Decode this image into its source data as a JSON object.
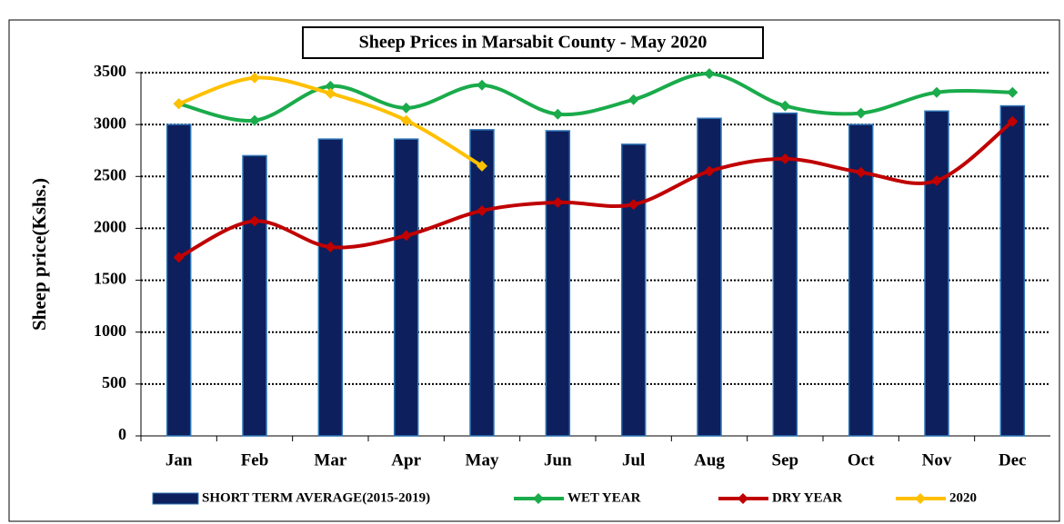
{
  "chart_data": {
    "type": "bar_line",
    "title": "Sheep Prices in Marsabit County - May 2020",
    "y_axis_label": "Sheep  price(Kshs.)",
    "categories": [
      "Jan",
      "Feb",
      "Mar",
      "Apr",
      "May",
      "Jun",
      "Jul",
      "Aug",
      "Sep",
      "Oct",
      "Nov",
      "Dec"
    ],
    "series": [
      {
        "name": "SHORT TERM AVERAGE(2015-2019)",
        "type": "bar",
        "color": "#0d1f5c",
        "values": [
          3000,
          2700,
          2860,
          2860,
          2950,
          2940,
          2810,
          3060,
          3110,
          3000,
          3130,
          3180
        ]
      },
      {
        "name": "WET YEAR",
        "type": "line",
        "color": "#1aab4b",
        "values": [
          3200,
          3040,
          3370,
          3160,
          3380,
          3100,
          3240,
          3490,
          3180,
          3110,
          3310,
          3310
        ]
      },
      {
        "name": "DRY YEAR",
        "type": "line",
        "color": "#c00000",
        "values": [
          1720,
          2070,
          1820,
          1930,
          2170,
          2250,
          2230,
          2550,
          2670,
          2540,
          2460,
          3030
        ]
      },
      {
        "name": "2020",
        "type": "line",
        "color": "#ffc000",
        "values": [
          3200,
          3450,
          3300,
          3040,
          2600,
          null,
          null,
          null,
          null,
          null,
          null,
          null
        ]
      }
    ],
    "ylim": [
      0,
      3500
    ],
    "yticks": [
      0,
      500,
      1000,
      1500,
      2000,
      2500,
      3000,
      3500
    ],
    "grid": true,
    "legend": "bottom"
  }
}
